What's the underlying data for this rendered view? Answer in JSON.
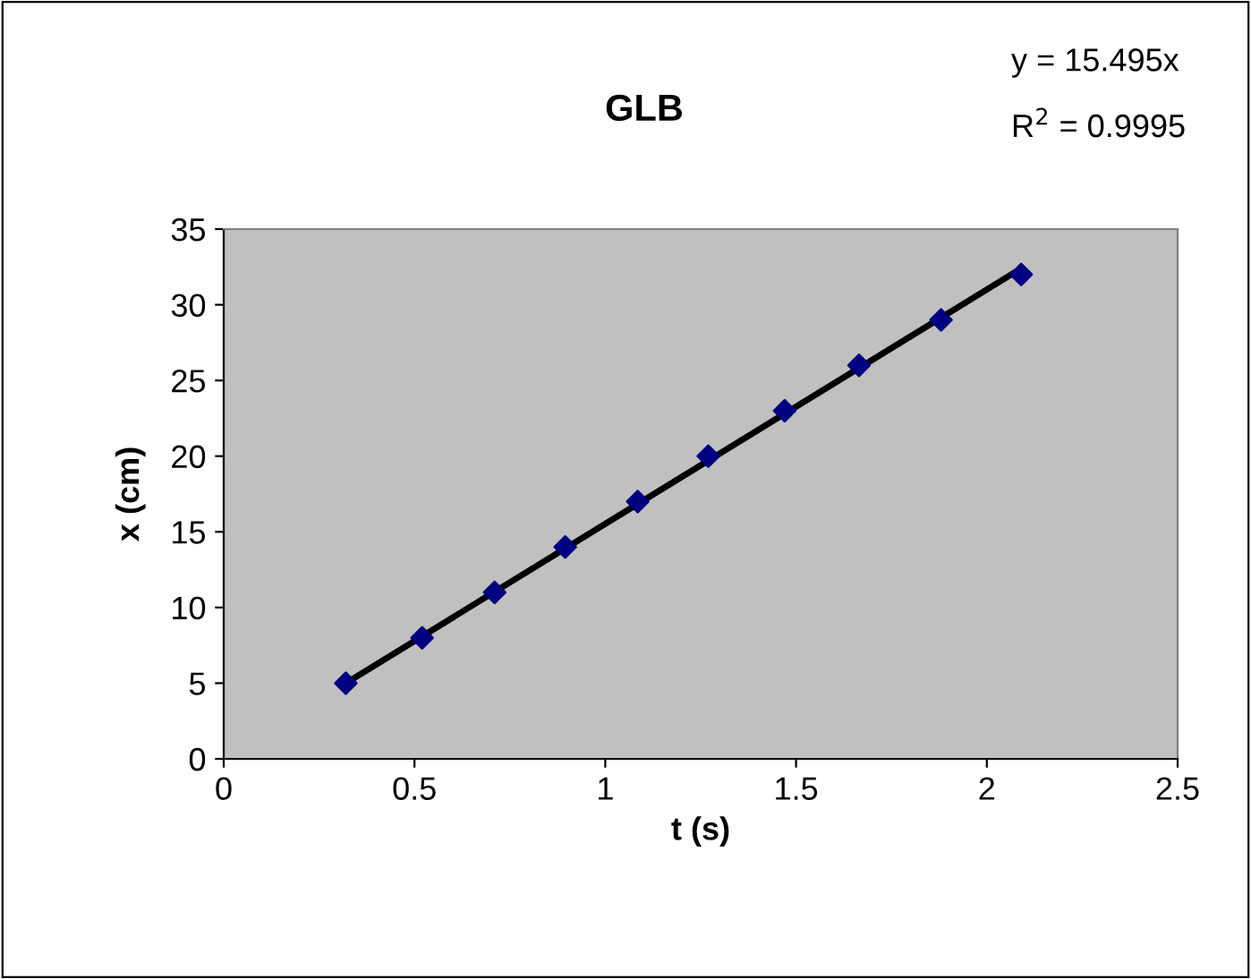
{
  "chart_data": {
    "type": "scatter",
    "title": "GLB",
    "xlabel": "t (s)",
    "ylabel": "x (cm)",
    "annotations": [
      "y = 15.495x",
      "R$^{2}$ = 0.9995"
    ],
    "series": [
      {
        "type": "line",
        "color": "#000000",
        "x": [
          0.32,
          2.09
        ],
        "values": [
          5.0,
          32.4
        ],
        "marker": "none",
        "line_style": "solid"
      },
      {
        "color": "#000080",
        "x": [
          0.32,
          0.52,
          0.71,
          0.895,
          1.085,
          1.27,
          1.47,
          1.665,
          1.88,
          2.09
        ],
        "values": [
          5,
          8,
          11,
          14,
          17,
          20,
          23,
          26,
          29,
          32
        ],
        "marker": "diamond"
      }
    ],
    "xlim": [
      0,
      2.5
    ],
    "xticks": [
      0,
      0.5,
      1,
      1.5,
      2,
      2.5
    ],
    "ylim": [
      0,
      35
    ],
    "yticks": [
      0,
      5,
      10,
      15,
      20,
      25,
      30,
      35
    ],
    "grid": false,
    "legend": false
  }
}
